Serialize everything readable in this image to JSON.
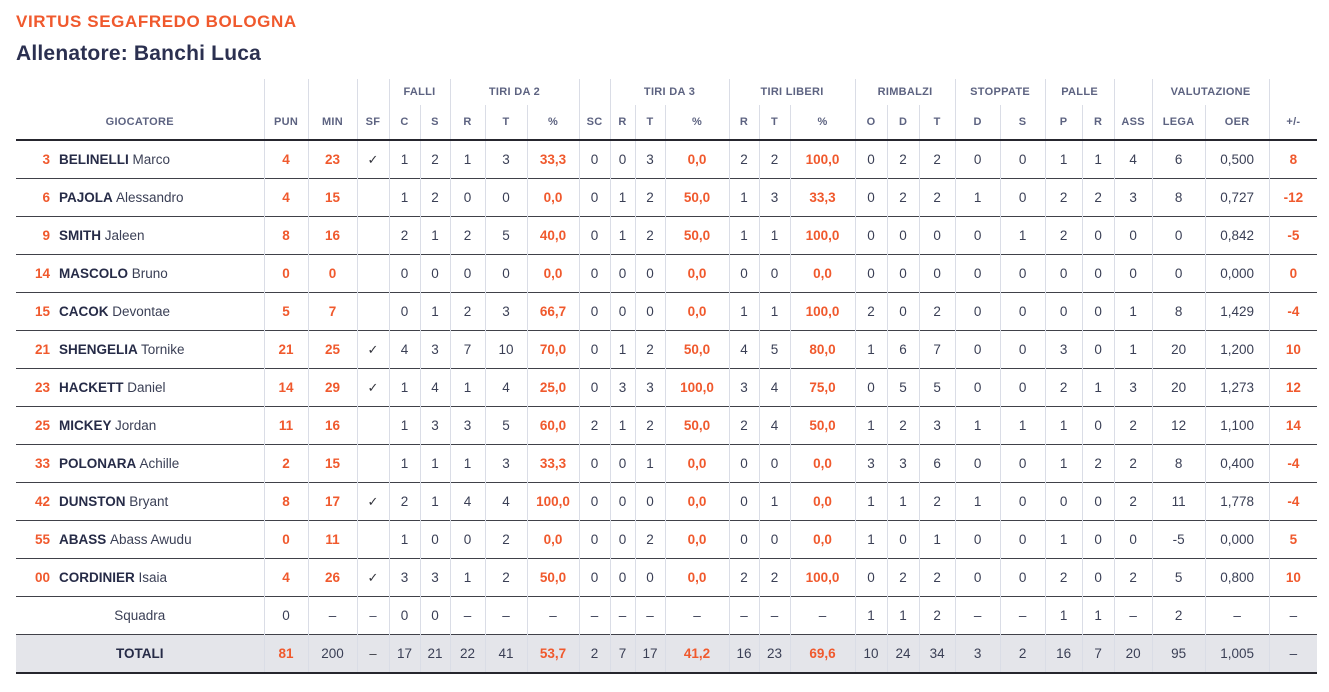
{
  "header": {
    "team_name": "VIRTUS SEGAFREDO BOLOGNA",
    "coach_line": "Allenatore: Banchi Luca"
  },
  "colors": {
    "accent": "#f0592d",
    "dark_navy": "#262b47",
    "header_text": "#5d6381",
    "grid_light": "#dadde6",
    "row_line": "#404149",
    "totals_bg": "#e4e5ea"
  },
  "table": {
    "column_groups": [
      {
        "label": "",
        "span": 1
      },
      {
        "label": "",
        "span": 1
      },
      {
        "label": "",
        "span": 1
      },
      {
        "label": "",
        "span": 1
      },
      {
        "label": "FALLI",
        "span": 2
      },
      {
        "label": "TIRI DA 2",
        "span": 3
      },
      {
        "label": "",
        "span": 1
      },
      {
        "label": "TIRI DA 3",
        "span": 3
      },
      {
        "label": "TIRI LIBERI",
        "span": 3
      },
      {
        "label": "RIMBALZI",
        "span": 3
      },
      {
        "label": "STOPPATE",
        "span": 2
      },
      {
        "label": "PALLE",
        "span": 2
      },
      {
        "label": "",
        "span": 1
      },
      {
        "label": "VALUTAZIONE",
        "span": 2
      },
      {
        "label": "",
        "span": 1
      }
    ],
    "columns": [
      "GIOCATORE",
      "PUN",
      "MIN",
      "SF",
      "C",
      "S",
      "R",
      "T",
      "%",
      "SC",
      "R",
      "T",
      "%",
      "R",
      "T",
      "%",
      "O",
      "D",
      "T",
      "D",
      "S",
      "P",
      "R",
      "ASS",
      "LEGA",
      "OER",
      "+/-"
    ],
    "players": [
      {
        "number": "3",
        "surname": "BELINELLI",
        "firstname": "Marco",
        "stats": [
          "4",
          "23",
          "✓",
          "1",
          "2",
          "1",
          "3",
          "33,3",
          "0",
          "0",
          "3",
          "0,0",
          "2",
          "2",
          "100,0",
          "0",
          "2",
          "2",
          "0",
          "0",
          "1",
          "1",
          "4",
          "6",
          "0,500",
          "8"
        ]
      },
      {
        "number": "6",
        "surname": "PAJOLA",
        "firstname": "Alessandro",
        "stats": [
          "4",
          "15",
          "",
          "1",
          "2",
          "0",
          "0",
          "0,0",
          "0",
          "1",
          "2",
          "50,0",
          "1",
          "3",
          "33,3",
          "0",
          "2",
          "2",
          "1",
          "0",
          "2",
          "2",
          "3",
          "8",
          "0,727",
          "-12"
        ]
      },
      {
        "number": "9",
        "surname": "SMITH",
        "firstname": "Jaleen",
        "stats": [
          "8",
          "16",
          "",
          "2",
          "1",
          "2",
          "5",
          "40,0",
          "0",
          "1",
          "2",
          "50,0",
          "1",
          "1",
          "100,0",
          "0",
          "0",
          "0",
          "0",
          "1",
          "2",
          "0",
          "0",
          "0",
          "0,842",
          "-5"
        ]
      },
      {
        "number": "14",
        "surname": "MASCOLO",
        "firstname": "Bruno",
        "stats": [
          "0",
          "0",
          "",
          "0",
          "0",
          "0",
          "0",
          "0,0",
          "0",
          "0",
          "0",
          "0,0",
          "0",
          "0",
          "0,0",
          "0",
          "0",
          "0",
          "0",
          "0",
          "0",
          "0",
          "0",
          "0",
          "0,000",
          "0"
        ]
      },
      {
        "number": "15",
        "surname": "CACOK",
        "firstname": "Devontae",
        "stats": [
          "5",
          "7",
          "",
          "0",
          "1",
          "2",
          "3",
          "66,7",
          "0",
          "0",
          "0",
          "0,0",
          "1",
          "1",
          "100,0",
          "2",
          "0",
          "2",
          "0",
          "0",
          "0",
          "0",
          "1",
          "8",
          "1,429",
          "-4"
        ]
      },
      {
        "number": "21",
        "surname": "SHENGELIA",
        "firstname": "Tornike",
        "stats": [
          "21",
          "25",
          "✓",
          "4",
          "3",
          "7",
          "10",
          "70,0",
          "0",
          "1",
          "2",
          "50,0",
          "4",
          "5",
          "80,0",
          "1",
          "6",
          "7",
          "0",
          "0",
          "3",
          "0",
          "1",
          "20",
          "1,200",
          "10"
        ]
      },
      {
        "number": "23",
        "surname": "HACKETT",
        "firstname": "Daniel",
        "stats": [
          "14",
          "29",
          "✓",
          "1",
          "4",
          "1",
          "4",
          "25,0",
          "0",
          "3",
          "3",
          "100,0",
          "3",
          "4",
          "75,0",
          "0",
          "5",
          "5",
          "0",
          "0",
          "2",
          "1",
          "3",
          "20",
          "1,273",
          "12"
        ]
      },
      {
        "number": "25",
        "surname": "MICKEY",
        "firstname": "Jordan",
        "stats": [
          "11",
          "16",
          "",
          "1",
          "3",
          "3",
          "5",
          "60,0",
          "2",
          "1",
          "2",
          "50,0",
          "2",
          "4",
          "50,0",
          "1",
          "2",
          "3",
          "1",
          "1",
          "1",
          "0",
          "2",
          "12",
          "1,100",
          "14"
        ]
      },
      {
        "number": "33",
        "surname": "POLONARA",
        "firstname": "Achille",
        "stats": [
          "2",
          "15",
          "",
          "1",
          "1",
          "1",
          "3",
          "33,3",
          "0",
          "0",
          "1",
          "0,0",
          "0",
          "0",
          "0,0",
          "3",
          "3",
          "6",
          "0",
          "0",
          "1",
          "2",
          "2",
          "8",
          "0,400",
          "-4"
        ]
      },
      {
        "number": "42",
        "surname": "DUNSTON",
        "firstname": "Bryant",
        "stats": [
          "8",
          "17",
          "✓",
          "2",
          "1",
          "4",
          "4",
          "100,0",
          "0",
          "0",
          "0",
          "0,0",
          "0",
          "1",
          "0,0",
          "1",
          "1",
          "2",
          "1",
          "0",
          "0",
          "0",
          "2",
          "11",
          "1,778",
          "-4"
        ]
      },
      {
        "number": "55",
        "surname": "ABASS",
        "firstname": "Abass Awudu",
        "stats": [
          "0",
          "11",
          "",
          "1",
          "0",
          "0",
          "2",
          "0,0",
          "0",
          "0",
          "2",
          "0,0",
          "0",
          "0",
          "0,0",
          "1",
          "0",
          "1",
          "0",
          "0",
          "1",
          "0",
          "0",
          "-5",
          "0,000",
          "5"
        ]
      },
      {
        "number": "00",
        "surname": "CORDINIER",
        "firstname": "Isaia",
        "stats": [
          "4",
          "26",
          "✓",
          "3",
          "3",
          "1",
          "2",
          "50,0",
          "0",
          "0",
          "0",
          "0,0",
          "2",
          "2",
          "100,0",
          "0",
          "2",
          "2",
          "0",
          "0",
          "2",
          "0",
          "2",
          "5",
          "0,800",
          "10"
        ]
      }
    ],
    "team_row": {
      "label": "Squadra",
      "stats": [
        "0",
        "–",
        "–",
        "0",
        "0",
        "–",
        "–",
        "–",
        "–",
        "–",
        "–",
        "–",
        "–",
        "–",
        "–",
        "1",
        "1",
        "2",
        "–",
        "–",
        "1",
        "1",
        "–",
        "2",
        "–",
        "–"
      ]
    },
    "totals_row": {
      "label": "TOTALI",
      "stats": [
        "81",
        "200",
        "–",
        "17",
        "21",
        "22",
        "41",
        "53,7",
        "2",
        "7",
        "17",
        "41,2",
        "16",
        "23",
        "69,6",
        "10",
        "24",
        "34",
        "3",
        "2",
        "16",
        "7",
        "20",
        "95",
        "1,005",
        "–"
      ]
    }
  }
}
